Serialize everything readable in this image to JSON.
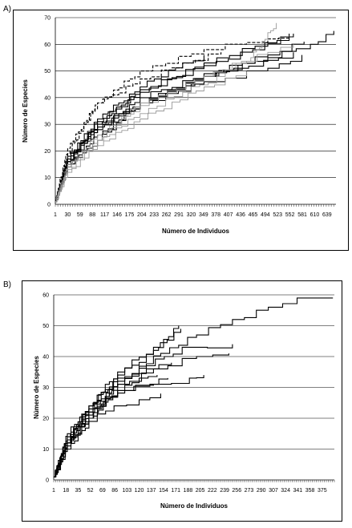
{
  "panels": [
    {
      "label": "A)",
      "xlabel": "Número de Individuos",
      "ylabel": "Número de Especies",
      "xticks": [
        "1",
        "30",
        "59",
        "88",
        "117",
        "146",
        "175",
        "204",
        "233",
        "262",
        "291",
        "320",
        "349",
        "378",
        "407",
        "436",
        "465",
        "494",
        "523",
        "552",
        "581",
        "610",
        "639"
      ],
      "yticks": [
        "0",
        "10",
        "20",
        "30",
        "40",
        "50",
        "60",
        "70"
      ]
    },
    {
      "label": "B)",
      "xlabel": "Número de Individuos",
      "ylabel": "Número de Especies",
      "xticks": [
        "1",
        "18",
        "35",
        "52",
        "69",
        "86",
        "103",
        "120",
        "137",
        "154",
        "171",
        "188",
        "205",
        "222",
        "239",
        "256",
        "273",
        "290",
        "307",
        "324",
        "341",
        "358",
        "375"
      ],
      "yticks": [
        "0",
        "10",
        "20",
        "30",
        "40",
        "50",
        "60"
      ]
    }
  ],
  "chart_data": [
    {
      "type": "line",
      "xlabel": "Número de Individuos",
      "ylabel": "Número de Especies",
      "xlim": [
        1,
        660
      ],
      "ylim": [
        0,
        70
      ],
      "grid": true,
      "series": [
        {
          "color": "#000000",
          "dashed": false,
          "x": [
            1,
            30,
            100,
            200,
            350,
            560
          ],
          "y": [
            1,
            16,
            31,
            42,
            53,
            64
          ]
        },
        {
          "color": "#000000",
          "dashed": false,
          "x": [
            1,
            30,
            100,
            200,
            350,
            500,
            585
          ],
          "y": [
            1,
            15,
            28,
            40,
            49,
            56,
            61
          ]
        },
        {
          "color": "#000000",
          "dashed": false,
          "x": [
            1,
            30,
            100,
            200,
            350,
            550
          ],
          "y": [
            1,
            17,
            30,
            43,
            52,
            63
          ]
        },
        {
          "color": "#000000",
          "dashed": false,
          "x": [
            1,
            30,
            100,
            200,
            350,
            490,
            560
          ],
          "y": [
            1,
            14,
            26,
            38,
            48,
            54,
            57
          ]
        },
        {
          "color": "#000000",
          "dashed": false,
          "x": [
            1,
            30,
            100,
            200,
            350,
            500,
            580
          ],
          "y": [
            1,
            15,
            24,
            38,
            46,
            51,
            56
          ]
        },
        {
          "color": "#000000",
          "dashed": false,
          "x": [
            1,
            30,
            100,
            200,
            350,
            500,
            600,
            655
          ],
          "y": [
            1,
            16,
            30,
            38,
            48,
            55,
            60,
            65
          ]
        },
        {
          "color": "#000000",
          "dashed": false,
          "x": [
            1,
            30,
            100,
            200,
            300,
            350
          ],
          "y": [
            1,
            18,
            32,
            44,
            53,
            56
          ]
        },
        {
          "color": "#000000",
          "dashed": false,
          "x": [
            1,
            30,
            100,
            200,
            350,
            430
          ],
          "y": [
            1,
            16,
            29,
            38,
            48,
            52
          ]
        },
        {
          "color": "#000000",
          "dashed": true,
          "x": [
            1,
            30,
            100,
            200,
            350,
            500,
            550
          ],
          "y": [
            1,
            19,
            38,
            50,
            58,
            62,
            64
          ]
        },
        {
          "color": "#000000",
          "dashed": true,
          "x": [
            1,
            30,
            100,
            200,
            300,
            390
          ],
          "y": [
            1,
            21,
            38,
            47,
            53,
            57
          ]
        },
        {
          "color": "#999999",
          "dashed": false,
          "x": [
            1,
            30,
            100,
            200,
            350,
            460,
            520
          ],
          "y": [
            1,
            13,
            24,
            38,
            48,
            55,
            68
          ]
        },
        {
          "color": "#999999",
          "dashed": false,
          "x": [
            1,
            30,
            100,
            200,
            350,
            450
          ],
          "y": [
            1,
            12,
            22,
            32,
            44,
            50
          ]
        },
        {
          "color": "#999999",
          "dashed": false,
          "x": [
            1,
            30,
            100,
            200,
            350,
            500,
            560
          ],
          "y": [
            1,
            14,
            26,
            37,
            48,
            57,
            60
          ]
        },
        {
          "color": "#999999",
          "dashed": false,
          "x": [
            1,
            30,
            100,
            200,
            300,
            400
          ],
          "y": [
            1,
            15,
            24,
            34,
            42,
            49
          ]
        }
      ]
    },
    {
      "type": "line",
      "xlabel": "Número de Individuos",
      "ylabel": "Número de Especies",
      "xlim": [
        1,
        392
      ],
      "ylim": [
        0,
        60
      ],
      "grid": true,
      "series": [
        {
          "color": "#000000",
          "dashed": false,
          "x": [
            1,
            20,
            50,
            90,
            150,
            200,
            250,
            300,
            340,
            390
          ],
          "y": [
            1,
            12,
            22,
            32,
            41,
            47,
            52,
            56,
            59,
            59
          ]
        },
        {
          "color": "#000000",
          "dashed": false,
          "x": [
            1,
            20,
            50,
            90,
            140,
            175
          ],
          "y": [
            1,
            14,
            23,
            34,
            42,
            50
          ]
        },
        {
          "color": "#000000",
          "dashed": false,
          "x": [
            1,
            20,
            50,
            90,
            140,
            178
          ],
          "y": [
            1,
            15,
            24,
            35,
            43,
            49
          ]
        },
        {
          "color": "#000000",
          "dashed": false,
          "x": [
            1,
            20,
            50,
            90,
            130,
            180,
            250
          ],
          "y": [
            1,
            13,
            23,
            31,
            37,
            43,
            44
          ]
        },
        {
          "color": "#000000",
          "dashed": false,
          "x": [
            1,
            20,
            50,
            90,
            140,
            200,
            245
          ],
          "y": [
            1,
            12,
            21,
            31,
            36,
            40,
            41
          ]
        },
        {
          "color": "#000000",
          "dashed": false,
          "x": [
            1,
            20,
            50,
            90,
            130,
            165
          ],
          "y": [
            1,
            14,
            24,
            33,
            36,
            38
          ]
        },
        {
          "color": "#000000",
          "dashed": false,
          "x": [
            1,
            20,
            50,
            90,
            140,
            190,
            210
          ],
          "y": [
            1,
            12,
            20,
            29,
            31,
            33,
            34
          ]
        },
        {
          "color": "#000000",
          "dashed": false,
          "x": [
            1,
            20,
            50,
            80,
            120,
            145
          ],
          "y": [
            1,
            11,
            20,
            27,
            33,
            34
          ]
        },
        {
          "color": "#000000",
          "dashed": false,
          "x": [
            1,
            20,
            50,
            90,
            135,
            160
          ],
          "y": [
            1,
            13,
            22,
            29,
            31,
            33
          ]
        },
        {
          "color": "#000000",
          "dashed": false,
          "x": [
            1,
            20,
            50,
            85,
            120,
            150
          ],
          "y": [
            1,
            10,
            19,
            24,
            26,
            28
          ]
        }
      ]
    }
  ]
}
